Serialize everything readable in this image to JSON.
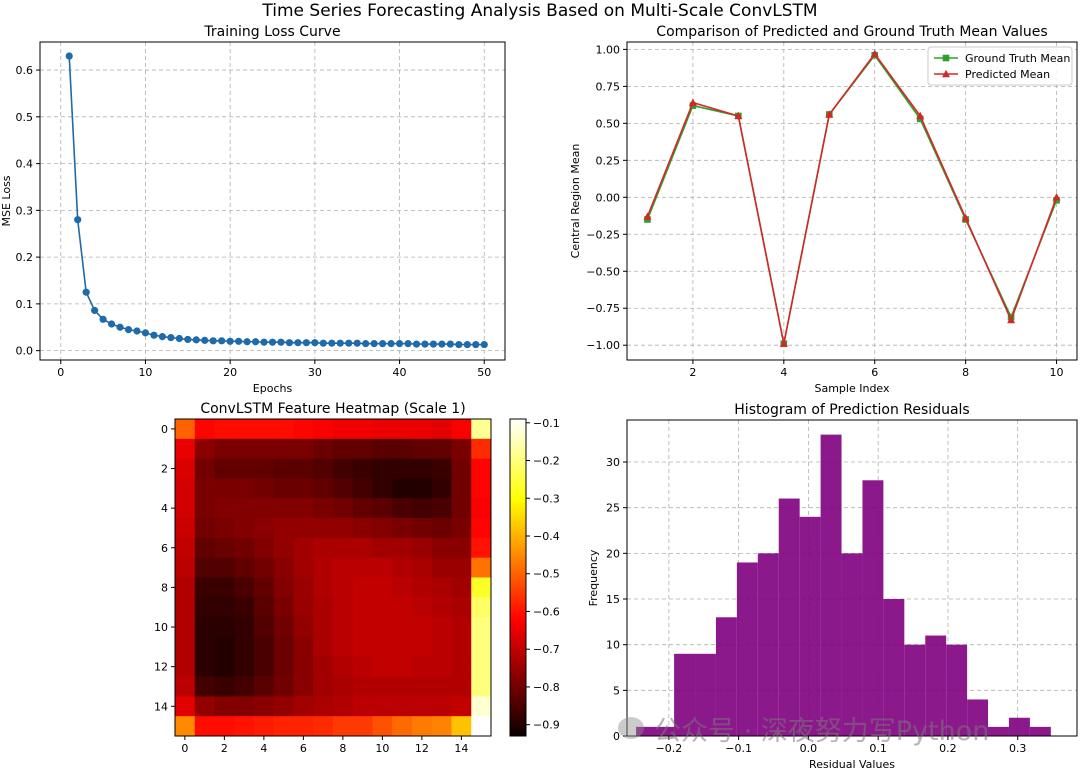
{
  "suptitle": "Time Series Forecasting Analysis Based on Multi-Scale ConvLSTM",
  "watermark": "公众号 · 深夜努力写Python",
  "colors": {
    "loss": "#1f6aa8",
    "ground_truth": "#2ca02c",
    "predicted": "#d62728",
    "histogram": "#800080",
    "grid": "#b0b0b0"
  },
  "chart_data": [
    {
      "id": "loss",
      "type": "line",
      "title": "Training Loss Curve",
      "xlabel": "Epochs",
      "ylabel": "MSE Loss",
      "xlim": [
        -2.45,
        52.45
      ],
      "ylim": [
        -0.02,
        0.66
      ],
      "xticks": [
        0,
        10,
        20,
        30,
        40,
        50
      ],
      "yticks": [
        0.0,
        0.1,
        0.2,
        0.3,
        0.4,
        0.5,
        0.6
      ],
      "ytick_labels": [
        "0.0",
        "0.1",
        "0.2",
        "0.3",
        "0.4",
        "0.5",
        "0.6"
      ],
      "x": [
        1,
        2,
        3,
        4,
        5,
        6,
        7,
        8,
        9,
        10,
        11,
        12,
        13,
        14,
        15,
        16,
        17,
        18,
        19,
        20,
        21,
        22,
        23,
        24,
        25,
        26,
        27,
        28,
        29,
        30,
        31,
        32,
        33,
        34,
        35,
        36,
        37,
        38,
        39,
        40,
        41,
        42,
        43,
        44,
        45,
        46,
        47,
        48,
        49,
        50
      ],
      "y": [
        0.63,
        0.28,
        0.125,
        0.086,
        0.067,
        0.057,
        0.05,
        0.045,
        0.042,
        0.038,
        0.033,
        0.03,
        0.028,
        0.026,
        0.024,
        0.023,
        0.022,
        0.021,
        0.021,
        0.02,
        0.02,
        0.019,
        0.019,
        0.018,
        0.018,
        0.018,
        0.017,
        0.017,
        0.017,
        0.017,
        0.016,
        0.016,
        0.016,
        0.016,
        0.016,
        0.015,
        0.015,
        0.015,
        0.015,
        0.015,
        0.015,
        0.014,
        0.014,
        0.014,
        0.014,
        0.014,
        0.013,
        0.013,
        0.013,
        0.013
      ],
      "grid": true
    },
    {
      "id": "means",
      "type": "line",
      "title": "Comparison of Predicted and Ground Truth Mean Values",
      "xlabel": "Sample Index",
      "ylabel": "Central Region Mean",
      "xlim": [
        0.55,
        10.45
      ],
      "ylim": [
        -1.1,
        1.05
      ],
      "xticks": [
        2,
        4,
        6,
        8,
        10
      ],
      "yticks": [
        -1.0,
        -0.75,
        -0.5,
        -0.25,
        0.0,
        0.25,
        0.5,
        0.75,
        1.0
      ],
      "ytick_labels": [
        "−1.00",
        "−0.75",
        "−0.50",
        "−0.25",
        "0.00",
        "0.25",
        "0.50",
        "0.75",
        "1.00"
      ],
      "x": [
        1,
        2,
        3,
        4,
        5,
        6,
        7,
        8,
        9,
        10
      ],
      "series": [
        {
          "name": "Ground Truth Mean",
          "marker": "square",
          "values": [
            -0.15,
            0.62,
            0.55,
            -0.99,
            0.56,
            0.96,
            0.53,
            -0.15,
            -0.81,
            -0.02
          ]
        },
        {
          "name": "Predicted Mean",
          "marker": "triangle",
          "values": [
            -0.13,
            0.64,
            0.55,
            -0.99,
            0.56,
            0.97,
            0.55,
            -0.14,
            -0.83,
            0.0
          ]
        }
      ],
      "legend": "top-right",
      "grid": true
    },
    {
      "id": "heatmap",
      "type": "heatmap",
      "title": "ConvLSTM Feature Heatmap (Scale 1)",
      "colormap": "hot",
      "vmin": -0.93,
      "vmax": -0.09,
      "xticks": [
        0,
        2,
        4,
        6,
        8,
        10,
        12,
        14
      ],
      "yticks": [
        0,
        2,
        4,
        6,
        8,
        10,
        12,
        14
      ],
      "colorbar_ticks": [
        -0.1,
        -0.2,
        -0.3,
        -0.4,
        -0.5,
        -0.6,
        -0.7,
        -0.8,
        -0.9
      ],
      "colorbar_labels": [
        "−0.1",
        "−0.2",
        "−0.3",
        "−0.4",
        "−0.5",
        "−0.6",
        "−0.7",
        "−0.8",
        "−0.9"
      ],
      "values": [
        [
          -0.5,
          -0.62,
          -0.61,
          -0.61,
          -0.61,
          -0.61,
          -0.62,
          -0.63,
          -0.64,
          -0.64,
          -0.65,
          -0.65,
          -0.65,
          -0.66,
          -0.63,
          -0.18
        ],
        [
          -0.65,
          -0.77,
          -0.79,
          -0.79,
          -0.79,
          -0.79,
          -0.79,
          -0.81,
          -0.82,
          -0.82,
          -0.83,
          -0.83,
          -0.82,
          -0.82,
          -0.79,
          -0.57
        ],
        [
          -0.67,
          -0.8,
          -0.82,
          -0.82,
          -0.82,
          -0.83,
          -0.83,
          -0.84,
          -0.86,
          -0.87,
          -0.88,
          -0.88,
          -0.88,
          -0.87,
          -0.8,
          -0.62
        ],
        [
          -0.68,
          -0.79,
          -0.79,
          -0.79,
          -0.8,
          -0.81,
          -0.81,
          -0.82,
          -0.84,
          -0.86,
          -0.88,
          -0.9,
          -0.9,
          -0.88,
          -0.8,
          -0.62
        ],
        [
          -0.68,
          -0.79,
          -0.78,
          -0.78,
          -0.78,
          -0.78,
          -0.78,
          -0.79,
          -0.8,
          -0.82,
          -0.83,
          -0.85,
          -0.86,
          -0.85,
          -0.8,
          -0.63
        ],
        [
          -0.69,
          -0.8,
          -0.79,
          -0.78,
          -0.77,
          -0.76,
          -0.76,
          -0.76,
          -0.76,
          -0.77,
          -0.78,
          -0.79,
          -0.8,
          -0.81,
          -0.79,
          -0.62
        ],
        [
          -0.7,
          -0.82,
          -0.81,
          -0.8,
          -0.78,
          -0.76,
          -0.74,
          -0.73,
          -0.73,
          -0.73,
          -0.74,
          -0.74,
          -0.75,
          -0.77,
          -0.77,
          -0.6
        ],
        [
          -0.71,
          -0.84,
          -0.84,
          -0.82,
          -0.8,
          -0.77,
          -0.74,
          -0.72,
          -0.71,
          -0.71,
          -0.71,
          -0.72,
          -0.73,
          -0.75,
          -0.75,
          -0.48
        ],
        [
          -0.72,
          -0.87,
          -0.87,
          -0.85,
          -0.82,
          -0.78,
          -0.75,
          -0.72,
          -0.71,
          -0.7,
          -0.7,
          -0.71,
          -0.72,
          -0.73,
          -0.74,
          -0.27
        ],
        [
          -0.72,
          -0.88,
          -0.88,
          -0.87,
          -0.83,
          -0.79,
          -0.75,
          -0.73,
          -0.71,
          -0.7,
          -0.7,
          -0.7,
          -0.71,
          -0.72,
          -0.73,
          -0.22
        ],
        [
          -0.72,
          -0.89,
          -0.89,
          -0.88,
          -0.84,
          -0.8,
          -0.76,
          -0.73,
          -0.71,
          -0.7,
          -0.7,
          -0.7,
          -0.7,
          -0.71,
          -0.72,
          -0.2
        ],
        [
          -0.72,
          -0.89,
          -0.9,
          -0.88,
          -0.85,
          -0.81,
          -0.77,
          -0.73,
          -0.71,
          -0.7,
          -0.7,
          -0.7,
          -0.7,
          -0.71,
          -0.72,
          -0.2
        ],
        [
          -0.72,
          -0.89,
          -0.9,
          -0.88,
          -0.85,
          -0.81,
          -0.77,
          -0.74,
          -0.72,
          -0.71,
          -0.7,
          -0.7,
          -0.71,
          -0.71,
          -0.72,
          -0.2
        ],
        [
          -0.71,
          -0.86,
          -0.87,
          -0.86,
          -0.83,
          -0.8,
          -0.77,
          -0.74,
          -0.73,
          -0.72,
          -0.72,
          -0.72,
          -0.72,
          -0.72,
          -0.72,
          -0.2
        ],
        [
          -0.66,
          -0.76,
          -0.78,
          -0.78,
          -0.77,
          -0.76,
          -0.74,
          -0.73,
          -0.72,
          -0.71,
          -0.71,
          -0.71,
          -0.71,
          -0.71,
          -0.7,
          -0.13
        ],
        [
          -0.45,
          -0.61,
          -0.61,
          -0.6,
          -0.59,
          -0.58,
          -0.58,
          -0.57,
          -0.55,
          -0.55,
          -0.52,
          -0.49,
          -0.47,
          -0.46,
          -0.38,
          -0.09
        ]
      ]
    },
    {
      "id": "hist",
      "type": "bar",
      "title": "Histogram of Prediction Residuals",
      "xlabel": "Residual Values",
      "ylabel": "Frequency",
      "xlim": [
        -0.26,
        0.385
      ],
      "ylim": [
        0,
        34.6
      ],
      "xticks": [
        -0.2,
        -0.1,
        0.0,
        0.1,
        0.2,
        0.3
      ],
      "xtick_labels": [
        "−0.2",
        "−0.1",
        "0.0",
        "0.1",
        "0.2",
        "0.3"
      ],
      "yticks": [
        0,
        5,
        10,
        15,
        20,
        25,
        30
      ],
      "bin_edges": [
        -0.247,
        -0.1925,
        -0.1625,
        -0.1325,
        -0.1025,
        -0.0725,
        -0.0425,
        -0.0125,
        0.0175,
        0.0475,
        0.0775,
        0.1075,
        0.1375,
        0.1675,
        0.1975,
        0.2275,
        0.2575,
        0.2875,
        0.3175,
        0.3475
      ],
      "values": [
        1,
        9,
        9,
        13,
        19,
        20,
        26,
        24,
        33,
        20,
        28,
        15,
        10,
        11,
        10,
        4,
        1,
        2,
        1
      ],
      "grid": true
    }
  ]
}
